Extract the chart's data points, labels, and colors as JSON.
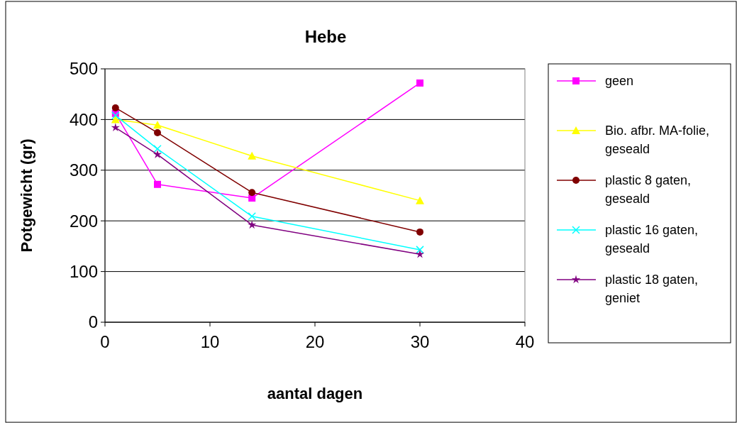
{
  "chart_data": {
    "type": "line",
    "title": "Hebe",
    "xlabel": "aantal dagen",
    "ylabel": "Potgewicht (gr)",
    "xlim": [
      0,
      40
    ],
    "xticks": [
      0,
      10,
      20,
      30,
      40
    ],
    "ylim": [
      0,
      500
    ],
    "yticks": [
      0,
      100,
      200,
      300,
      400,
      500
    ],
    "grid": "y",
    "legend": "right",
    "x": [
      1,
      5,
      14,
      30
    ],
    "series": [
      {
        "name": "geen",
        "color": "#ff00ff",
        "marker": "square",
        "values": [
          412,
          272,
          245,
          472
        ]
      },
      {
        "name": "Bio. afbr. MA-folie, geseald",
        "color": "#ffff00",
        "marker": "triangle",
        "values": [
          400,
          389,
          328,
          240
        ]
      },
      {
        "name": "plastic 8 gaten, geseald",
        "color": "#800000",
        "marker": "circle",
        "values": [
          423,
          374,
          256,
          178
        ]
      },
      {
        "name": "plastic 16 gaten, geseald",
        "color": "#00ffff",
        "marker": "cross",
        "values": [
          408,
          342,
          209,
          143
        ]
      },
      {
        "name": "plastic 18 gaten, geniet",
        "color": "#800080",
        "marker": "star",
        "values": [
          384,
          331,
          192,
          134
        ]
      }
    ]
  }
}
